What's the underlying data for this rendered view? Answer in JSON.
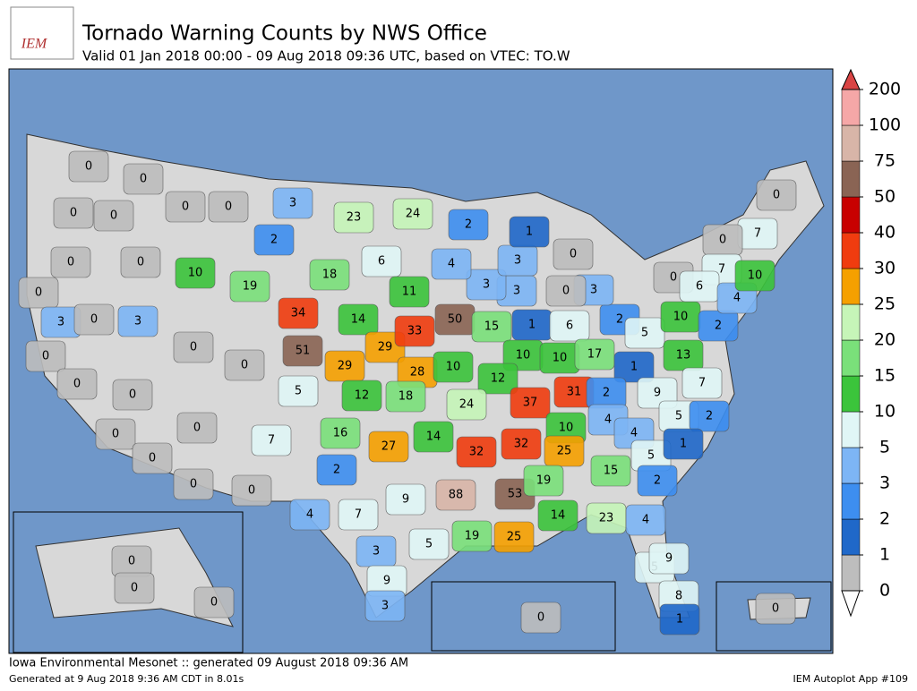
{
  "header": {
    "logo": "IEM",
    "title": "Tornado Warning Counts by NWS Office",
    "subtitle": "Valid 01 Jan 2018 00:00 - 09 Aug 2018 09:36 UTC, based on VTEC: TO.W"
  },
  "footer": {
    "source": "Iowa Environmental Mesonet :: generated 09 August 2018 09:36 AM",
    "generated": "Generated at 9 Aug 2018 9:36 AM CDT in 8.01s",
    "app": "IEM Autoplot App #109"
  },
  "colorbar": {
    "ticks": [
      0,
      1,
      2,
      3,
      5,
      10,
      15,
      20,
      25,
      30,
      40,
      50,
      75,
      100,
      200
    ],
    "colors": [
      "#bdbdbd",
      "#1f68c9",
      "#3d8ef0",
      "#7db5f5",
      "#e0f6f6",
      "#3bc43b",
      "#7ae07a",
      "#c6f5b8",
      "#f5a000",
      "#f03c0f",
      "#c80000",
      "#8a6454",
      "#d8b5a8",
      "#f5a7a7"
    ],
    "over_color": "#d94444",
    "under_color": "#ffffff"
  },
  "warning_counts": [
    0,
    0,
    0,
    0,
    0,
    0,
    3,
    2,
    0,
    0,
    10,
    19,
    18,
    23,
    24,
    6,
    11,
    0,
    3,
    0,
    3,
    0,
    34,
    51,
    14,
    29,
    33,
    50,
    15,
    1,
    6,
    2,
    5,
    10,
    2,
    0,
    0,
    0,
    0,
    5,
    29,
    28,
    10,
    10,
    10,
    17,
    1,
    13,
    7,
    12,
    18,
    12,
    24,
    37,
    31,
    2,
    9,
    0,
    0,
    7,
    16,
    27,
    14,
    4,
    5,
    2,
    10,
    4,
    32,
    32,
    25,
    5,
    1,
    0,
    0,
    2,
    0,
    9,
    88,
    53,
    19,
    15,
    2,
    4,
    7,
    23,
    14,
    4,
    3,
    5,
    19,
    25,
    5,
    9,
    9,
    8,
    3,
    1,
    0,
    0,
    0,
    0,
    0,
    0,
    7,
    0,
    7,
    0,
    6,
    4,
    10,
    3,
    0,
    3,
    3,
    4,
    3,
    0,
    1,
    2
  ]
}
